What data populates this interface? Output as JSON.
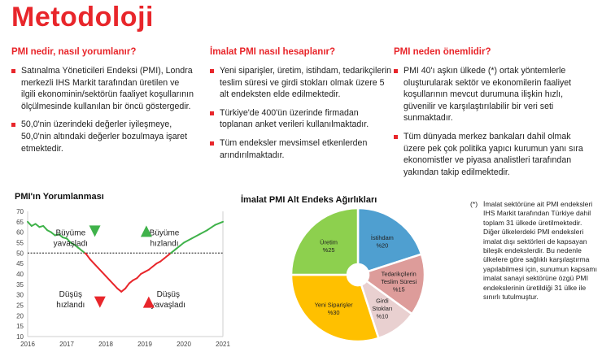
{
  "title": "Metodoloji",
  "columns": [
    {
      "heading": "PMI nedir, nasıl yorumlanır?",
      "bullets": [
        "Satınalma Yöneticileri Endeksi (PMI), Londra merkezli IHS Markit tarafından üretilen ve ilgili ekonominin/sektörün faaliyet koşullarının ölçülmesinde kullanılan bir öncü göstergedir.",
        "50,0'nin üzerindeki değerler iyileşmeye, 50,0'nin altındaki değerler bozulmaya işaret etmektedir."
      ]
    },
    {
      "heading": "İmalat PMI nasıl hesaplanır?",
      "bullets": [
        "Yeni siparişler, üretim, istihdam, tedarikçilerin teslim süresi ve girdi stokları olmak üzere 5 alt endeksten elde edilmektedir.",
        "Türkiye'de 400'ün üzerinde firmadan toplanan anket verileri kullanılmaktadır.",
        "Tüm endeksler mevsimsel etkenlerden arındırılmaktadır."
      ]
    },
    {
      "heading": "PMI neden önemlidir?",
      "bullets": [
        "PMI 40'ı aşkın ülkede (*) ortak yöntemlerle oluşturularak sektör ve ekonomilerin faaliyet koşullarının mevcut durumuna ilişkin hızlı, güvenilir ve karşılaştırılabilir bir veri seti sunmaktadır.",
        "Tüm dünyada merkez bankaları dahil olmak üzere pek çok politika yapıcı kurumun yanı sıra ekonomistler ve piyasa analistleri tarafından yakından takip edilmektedir."
      ]
    }
  ],
  "chart_data": [
    {
      "type": "line",
      "title": "PMI'ın Yorumlanması",
      "ylim": [
        10,
        70
      ],
      "yticks": [
        10,
        15,
        20,
        25,
        30,
        35,
        40,
        45,
        50,
        55,
        60,
        65,
        70
      ],
      "xlim": [
        2016,
        2021
      ],
      "xticks": [
        "2016",
        "2017",
        "2018",
        "2019",
        "2020",
        "2021"
      ],
      "threshold": 50,
      "x": [
        2016.0,
        2016.1,
        2016.2,
        2016.3,
        2016.4,
        2016.5,
        2016.6,
        2016.7,
        2016.8,
        2016.9,
        2017.0,
        2017.1,
        2017.2,
        2017.3,
        2017.4,
        2017.5,
        2017.6,
        2017.7,
        2017.8,
        2017.9,
        2018.0,
        2018.1,
        2018.2,
        2018.3,
        2018.4,
        2018.5,
        2018.6,
        2018.7,
        2018.8,
        2018.9,
        2019.0,
        2019.1,
        2019.2,
        2019.3,
        2019.4,
        2019.5,
        2019.6,
        2019.7,
        2019.8,
        2019.9,
        2020.0,
        2020.2,
        2020.4,
        2020.6,
        2020.8,
        2021.0
      ],
      "y": [
        65,
        63,
        64,
        62.5,
        63,
        61,
        60,
        58.5,
        59,
        57.5,
        57,
        55,
        54,
        52.5,
        51,
        49.5,
        47,
        45,
        43,
        41,
        39,
        37,
        35,
        33,
        31.5,
        33,
        35.5,
        37,
        38,
        40,
        41,
        42,
        43.5,
        45,
        46,
        47.5,
        49,
        50.5,
        52,
        53.5,
        55,
        57,
        59,
        61,
        63.5,
        65
      ],
      "above_color": "#3fb24a",
      "below_color": "#e8262b",
      "annotations": [
        {
          "text": "Büyüme yavaşladı",
          "arrow": "down",
          "color": "#3fb24a"
        },
        {
          "text": "Büyüme hızlandı",
          "arrow": "up",
          "color": "#3fb24a"
        },
        {
          "text": "Düşüş hızlandı",
          "arrow": "down",
          "color": "#e8262b"
        },
        {
          "text": "Düşüş yavaşladı",
          "arrow": "up",
          "color": "#e8262b"
        }
      ]
    },
    {
      "type": "pie",
      "title": "İmalat PMI Alt Endeks Ağırlıkları",
      "slices": [
        {
          "name": "İstihdam",
          "label": "%20",
          "value": 20,
          "color": "#4f9fd0"
        },
        {
          "name": "Tedarikçilerin Teslim Süresi",
          "label": "%15",
          "value": 15,
          "color": "#dd9c9a"
        },
        {
          "name": "Girdi Stokları",
          "label": "%10",
          "value": 10,
          "color": "#e9d0d0"
        },
        {
          "name": "Yeni Siparişler",
          "label": "%30",
          "value": 30,
          "color": "#ffc000"
        },
        {
          "name": "Üretim",
          "label": "%25",
          "value": 25,
          "color": "#8dd04e"
        }
      ]
    }
  ],
  "note": {
    "mark": "(*)",
    "text": "İmalat sektörüne ait PMI endeksleri IHS Markit tarafından Türkiye dahil toplam 31 ülkede üretilmektedir. Diğer ülkelerdeki PMI endeksleri imalat dışı sektörleri de kapsayan bileşik endekslerdir. Bu nedenle ülkelere göre sağlıklı karşılaştırma yapılabilmesi için, sunumun kapsamı imalat sanayi sektörüne özgü PMI endekslerinin üretildiği 31 ülke ile sınırlı tutulmuştur."
  }
}
